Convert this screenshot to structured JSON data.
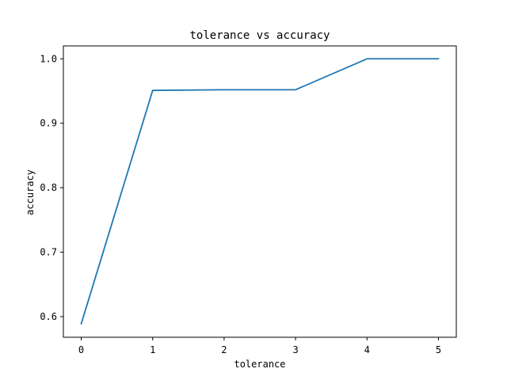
{
  "chart_data": {
    "type": "line",
    "title": "tolerance vs accuracy",
    "xlabel": "tolerance",
    "ylabel": "accuracy",
    "xlim": [
      -0.25,
      5.25
    ],
    "ylim": [
      0.568,
      1.02
    ],
    "xticks": [
      0,
      1,
      2,
      3,
      4,
      5
    ],
    "yticks": [
      0.6,
      0.7,
      0.8,
      0.9,
      1.0
    ],
    "xtick_labels": [
      "0",
      "1",
      "2",
      "3",
      "4",
      "5"
    ],
    "ytick_labels": [
      "0.6",
      "0.7",
      "0.8",
      "0.9",
      "1.0"
    ],
    "grid": false,
    "series": [
      {
        "color": "#1f77b4",
        "x": [
          0,
          1,
          2,
          3,
          4,
          5
        ],
        "values": [
          0.589,
          0.951,
          0.952,
          0.952,
          1.0,
          1.0
        ]
      }
    ]
  }
}
